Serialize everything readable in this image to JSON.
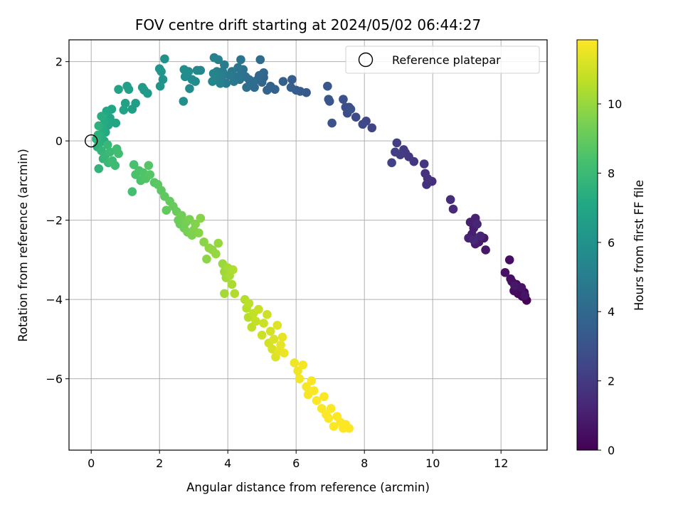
{
  "chart_data": {
    "type": "scatter",
    "title": "FOV centre drift starting at 2024/05/02 06:44:27",
    "xlabel": "Angular distance from reference (arcmin)",
    "ylabel": "Rotation from reference (arcmin)",
    "xlim": [
      -0.65,
      13.35
    ],
    "ylim": [
      -7.8,
      2.55
    ],
    "xticks": [
      0,
      2,
      4,
      6,
      8,
      10,
      12
    ],
    "yticks": [
      2,
      0,
      -2,
      -4,
      -6
    ],
    "grid": true,
    "legend": {
      "position": "top-right",
      "label": "Reference platepar"
    },
    "reference_point": {
      "x": 0,
      "y": 0
    },
    "colorbar": {
      "label": "Hours from first FF file",
      "range": [
        0,
        11.85
      ],
      "ticks": [
        0,
        2,
        4,
        6,
        8,
        10
      ],
      "colormap": "viridis"
    },
    "series": [
      {
        "points": [
          [
            12.75,
            -4.02,
            0.05
          ],
          [
            12.68,
            -3.82,
            0.1
          ],
          [
            12.62,
            -3.92,
            0.15
          ],
          [
            12.55,
            -3.75,
            0.2
          ],
          [
            12.5,
            -3.85,
            0.25
          ],
          [
            12.45,
            -3.62,
            0.3
          ],
          [
            12.38,
            -3.78,
            0.35
          ],
          [
            12.32,
            -3.55,
            0.4
          ],
          [
            12.25,
            -3.0,
            0.45
          ],
          [
            12.28,
            -3.48,
            0.5
          ],
          [
            12.12,
            -3.32,
            0.55
          ],
          [
            12.6,
            -3.7,
            0.6
          ],
          [
            12.7,
            -3.9,
            0.65
          ],
          [
            12.4,
            -3.65,
            0.7
          ],
          [
            11.55,
            -2.75,
            0.75
          ],
          [
            11.5,
            -2.45,
            0.8
          ],
          [
            11.35,
            -2.55,
            0.85
          ],
          [
            11.25,
            -2.6,
            0.9
          ],
          [
            11.2,
            -2.2,
            0.95
          ],
          [
            11.15,
            -2.35,
            1.0
          ],
          [
            11.1,
            -2.05,
            1.05
          ],
          [
            11.25,
            -1.95,
            1.1
          ],
          [
            11.05,
            -2.45,
            1.15
          ],
          [
            11.4,
            -2.4,
            1.2
          ],
          [
            11.3,
            -2.1,
            1.25
          ],
          [
            11.2,
            -2.5,
            1.3
          ],
          [
            10.6,
            -1.72,
            1.4
          ],
          [
            10.52,
            -1.48,
            1.5
          ],
          [
            9.98,
            -1.02,
            1.6
          ],
          [
            9.82,
            -1.1,
            1.65
          ],
          [
            9.78,
            -0.82,
            1.7
          ],
          [
            9.85,
            -0.95,
            1.75
          ],
          [
            9.75,
            -0.58,
            1.8
          ],
          [
            9.45,
            -0.52,
            1.9
          ],
          [
            9.3,
            -0.4,
            1.95
          ],
          [
            9.2,
            -0.3,
            2.0
          ],
          [
            9.15,
            -0.22,
            2.05
          ],
          [
            9.05,
            -0.35,
            2.1
          ],
          [
            8.95,
            -0.05,
            2.15
          ],
          [
            8.9,
            -0.28,
            2.2
          ],
          [
            8.8,
            -0.55,
            2.25
          ],
          [
            8.22,
            0.33,
            2.4
          ],
          [
            8.05,
            0.5,
            2.5
          ],
          [
            7.95,
            0.42,
            2.55
          ],
          [
            7.75,
            0.6,
            2.65
          ],
          [
            7.5,
            0.7,
            2.75
          ],
          [
            7.45,
            0.85,
            2.8
          ],
          [
            7.55,
            0.85,
            2.85
          ],
          [
            7.38,
            1.05,
            2.9
          ],
          [
            7.6,
            0.8,
            2.95
          ],
          [
            7.05,
            0.45,
            3.05
          ],
          [
            6.98,
            1.0,
            3.1
          ],
          [
            6.95,
            1.05,
            3.15
          ],
          [
            6.92,
            1.38,
            3.2
          ],
          [
            6.3,
            1.22,
            3.35
          ],
          [
            6.12,
            1.25,
            3.4
          ],
          [
            6.0,
            1.28,
            3.45
          ],
          [
            5.88,
            1.55,
            3.5
          ],
          [
            5.85,
            1.35,
            3.55
          ],
          [
            5.62,
            1.5,
            3.6
          ],
          [
            5.38,
            1.3,
            3.7
          ],
          [
            5.25,
            1.38,
            3.75
          ],
          [
            5.15,
            1.28,
            3.8
          ],
          [
            5.05,
            1.6,
            3.85
          ],
          [
            5.0,
            1.48,
            3.9
          ],
          [
            5.05,
            1.72,
            3.95
          ],
          [
            4.92,
            1.65,
            4.0
          ],
          [
            4.88,
            1.55,
            4.05
          ],
          [
            4.78,
            1.35,
            4.1
          ],
          [
            4.95,
            2.05,
            4.15
          ],
          [
            4.72,
            1.5,
            4.2
          ],
          [
            4.62,
            1.55,
            4.25
          ],
          [
            4.55,
            1.35,
            4.3
          ],
          [
            4.52,
            1.62,
            4.35
          ],
          [
            4.45,
            1.8,
            4.4
          ],
          [
            4.4,
            1.7,
            4.45
          ],
          [
            4.35,
            1.55,
            4.5
          ],
          [
            4.38,
            2.05,
            4.55
          ],
          [
            4.3,
            1.85,
            4.6
          ],
          [
            4.25,
            1.62,
            4.65
          ],
          [
            4.18,
            1.5,
            4.7
          ],
          [
            4.12,
            1.75,
            4.75
          ],
          [
            4.05,
            1.65,
            4.8
          ],
          [
            3.95,
            1.45,
            4.85
          ],
          [
            3.9,
            1.92,
            4.9
          ],
          [
            3.85,
            1.75,
            4.95
          ],
          [
            3.82,
            1.6,
            5.0
          ],
          [
            3.78,
            1.45,
            5.05
          ],
          [
            3.72,
            2.05,
            5.1
          ],
          [
            3.68,
            1.75,
            5.15
          ],
          [
            3.65,
            1.55,
            5.2
          ],
          [
            3.6,
            2.1,
            5.25
          ],
          [
            3.58,
            1.7,
            5.3
          ],
          [
            3.55,
            1.5,
            5.35
          ],
          [
            3.2,
            1.78,
            5.45
          ],
          [
            3.1,
            1.78,
            5.5
          ],
          [
            3.05,
            1.5,
            5.55
          ],
          [
            2.95,
            1.55,
            5.6
          ],
          [
            2.88,
            1.32,
            5.65
          ],
          [
            2.85,
            1.75,
            5.7
          ],
          [
            2.75,
            1.62,
            5.75
          ],
          [
            2.72,
            1.8,
            5.8
          ],
          [
            2.7,
            1.0,
            5.85
          ],
          [
            2.15,
            2.07,
            6.0
          ],
          [
            2.1,
            1.55,
            6.05
          ],
          [
            2.05,
            1.75,
            6.1
          ],
          [
            2.02,
            1.38,
            6.15
          ],
          [
            2.0,
            1.82,
            6.2
          ],
          [
            1.55,
            1.28,
            6.35
          ],
          [
            1.65,
            1.2,
            6.4
          ],
          [
            1.5,
            1.35,
            6.45
          ],
          [
            1.3,
            0.95,
            6.55
          ],
          [
            1.2,
            0.8,
            6.6
          ],
          [
            1.1,
            1.3,
            6.65
          ],
          [
            1.05,
            1.38,
            6.7
          ],
          [
            1.0,
            0.95,
            6.75
          ],
          [
            0.95,
            0.78,
            6.8
          ],
          [
            0.8,
            1.3,
            6.85
          ],
          [
            0.72,
            0.45,
            6.9
          ],
          [
            0.6,
            0.8,
            6.95
          ],
          [
            0.55,
            0.58,
            7.0
          ],
          [
            0.5,
            0.4,
            7.05
          ],
          [
            0.45,
            0.75,
            7.1
          ],
          [
            0.42,
            0.22,
            7.15
          ],
          [
            0.4,
            0.5,
            7.2
          ],
          [
            0.38,
            0.0,
            7.25
          ],
          [
            0.35,
            0.3,
            7.3
          ],
          [
            0.3,
            0.62,
            7.35
          ],
          [
            0.28,
            0.12,
            7.4
          ],
          [
            0.25,
            -0.05,
            7.45
          ],
          [
            0.22,
            0.38,
            7.5
          ],
          [
            0.2,
            0.15,
            7.55
          ],
          [
            0.18,
            -0.15,
            7.6
          ],
          [
            0.15,
            0.05,
            7.65
          ],
          [
            0.22,
            -0.7,
            7.7
          ],
          [
            0.3,
            -0.25,
            7.75
          ],
          [
            0.35,
            -0.45,
            7.8
          ],
          [
            0.42,
            -0.35,
            7.85
          ],
          [
            0.48,
            -0.1,
            7.9
          ],
          [
            0.5,
            -0.55,
            7.95
          ],
          [
            0.55,
            -0.28,
            8.0
          ],
          [
            0.62,
            -0.5,
            8.05
          ],
          [
            0.7,
            -0.62,
            8.1
          ],
          [
            0.75,
            -0.2,
            8.15
          ],
          [
            0.8,
            -0.32,
            8.2
          ],
          [
            1.2,
            -1.28,
            8.3
          ],
          [
            1.25,
            -0.6,
            8.35
          ],
          [
            1.3,
            -0.85,
            8.4
          ],
          [
            1.4,
            -0.75,
            8.45
          ],
          [
            1.45,
            -1.0,
            8.5
          ],
          [
            1.52,
            -0.8,
            8.55
          ],
          [
            1.6,
            -0.95,
            8.6
          ],
          [
            1.68,
            -0.62,
            8.65
          ],
          [
            1.72,
            -0.85,
            8.7
          ],
          [
            1.85,
            -1.05,
            8.75
          ],
          [
            1.95,
            -1.1,
            8.8
          ],
          [
            2.05,
            -1.25,
            8.85
          ],
          [
            2.15,
            -1.4,
            8.9
          ],
          [
            2.2,
            -1.75,
            8.95
          ],
          [
            2.3,
            -1.52,
            9.0
          ],
          [
            2.4,
            -1.65,
            9.05
          ],
          [
            2.5,
            -1.78,
            9.1
          ],
          [
            2.55,
            -2.0,
            9.15
          ],
          [
            2.6,
            -2.1,
            9.2
          ],
          [
            2.65,
            -1.88,
            9.25
          ],
          [
            2.72,
            -2.2,
            9.3
          ],
          [
            2.78,
            -2.05,
            9.35
          ],
          [
            2.82,
            -2.3,
            9.4
          ],
          [
            2.88,
            -1.98,
            9.45
          ],
          [
            2.95,
            -2.38,
            9.5
          ],
          [
            3.0,
            -2.25,
            9.55
          ],
          [
            3.05,
            -2.1,
            9.6
          ],
          [
            3.15,
            -2.32,
            9.65
          ],
          [
            3.2,
            -1.95,
            9.7
          ],
          [
            3.3,
            -2.55,
            9.75
          ],
          [
            3.38,
            -2.98,
            9.8
          ],
          [
            3.45,
            -2.7,
            9.85
          ],
          [
            3.55,
            -2.75,
            9.9
          ],
          [
            3.65,
            -2.85,
            9.95
          ],
          [
            3.72,
            -2.58,
            10.0
          ],
          [
            3.85,
            -3.1,
            10.05
          ],
          [
            3.9,
            -3.3,
            10.1
          ],
          [
            3.95,
            -3.45,
            10.15
          ],
          [
            3.9,
            -3.85,
            10.2
          ],
          [
            4.0,
            -3.2,
            10.25
          ],
          [
            4.05,
            -3.4,
            10.3
          ],
          [
            4.12,
            -3.62,
            10.35
          ],
          [
            4.15,
            -3.25,
            10.4
          ],
          [
            4.2,
            -3.85,
            10.45
          ],
          [
            4.5,
            -4.0,
            10.5
          ],
          [
            4.55,
            -4.22,
            10.55
          ],
          [
            4.6,
            -4.45,
            10.6
          ],
          [
            4.62,
            -4.1,
            10.65
          ],
          [
            4.7,
            -4.7,
            10.7
          ],
          [
            4.75,
            -4.35,
            10.75
          ],
          [
            4.82,
            -4.55,
            10.8
          ],
          [
            4.9,
            -4.25,
            10.85
          ],
          [
            5.0,
            -4.9,
            10.9
          ],
          [
            5.05,
            -4.6,
            10.95
          ],
          [
            5.15,
            -4.38,
            11.0
          ],
          [
            5.2,
            -5.1,
            11.05
          ],
          [
            5.25,
            -4.8,
            11.1
          ],
          [
            5.3,
            -5.25,
            11.15
          ],
          [
            5.35,
            -5.0,
            11.2
          ],
          [
            5.4,
            -5.45,
            11.25
          ],
          [
            5.45,
            -4.65,
            11.3
          ],
          [
            5.5,
            -5.3,
            11.35
          ],
          [
            5.55,
            -5.15,
            11.4
          ],
          [
            5.6,
            -4.95,
            11.45
          ],
          [
            5.65,
            -5.35,
            11.5
          ],
          [
            5.95,
            -5.6,
            11.55
          ],
          [
            6.05,
            -5.8,
            11.6
          ],
          [
            6.1,
            -6.0,
            11.65
          ],
          [
            6.2,
            -5.65,
            11.7
          ],
          [
            6.3,
            -6.2,
            11.72
          ],
          [
            6.35,
            -6.4,
            11.74
          ],
          [
            6.45,
            -6.05,
            11.76
          ],
          [
            6.52,
            -6.3,
            11.78
          ],
          [
            6.6,
            -6.55,
            11.8
          ],
          [
            6.75,
            -6.75,
            11.8
          ],
          [
            6.82,
            -6.45,
            11.82
          ],
          [
            6.88,
            -6.9,
            11.82
          ],
          [
            6.95,
            -7.0,
            11.83
          ],
          [
            7.02,
            -6.75,
            11.83
          ],
          [
            7.1,
            -7.2,
            11.84
          ],
          [
            7.2,
            -6.95,
            11.84
          ],
          [
            7.3,
            -7.1,
            11.85
          ],
          [
            7.38,
            -7.25,
            11.85
          ],
          [
            7.45,
            -7.15,
            11.85
          ],
          [
            7.55,
            -7.25,
            11.85
          ]
        ]
      }
    ]
  }
}
